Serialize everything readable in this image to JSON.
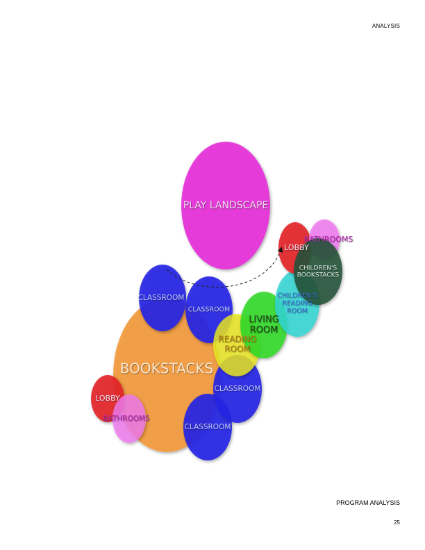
{
  "header": {
    "section_label": "ANALYSIS"
  },
  "footer": {
    "title": "PROGRAM ANALYSIS",
    "page_number": "25"
  },
  "colors": {
    "magenta": "#e632d9",
    "orange": "#f39a3a",
    "blue": "#2424e6",
    "green": "#33d92a",
    "yellow": "#e9e61f",
    "red": "#e3262a",
    "pink": "#f07bf0",
    "cyan": "#33d6d3",
    "dark_green": "#24523a"
  },
  "diagram": {
    "bubbles": [
      {
        "id": "play-landscape",
        "label": [
          "PLAY LANDSCAPE"
        ],
        "color": "magenta",
        "label_color": "#f6d6f2"
      },
      {
        "id": "bookstacks",
        "label": [
          "BOOKSTACKS"
        ],
        "color": "orange",
        "label_color": "#fbe3c6"
      },
      {
        "id": "classroom-1",
        "label": [
          "CLASSROOM"
        ],
        "color": "blue",
        "label_color": "#b9c2ff"
      },
      {
        "id": "classroom-2",
        "label": [
          "CLASSROOM"
        ],
        "color": "blue",
        "label_color": "#b9c2ff"
      },
      {
        "id": "classroom-3",
        "label": [
          "CLASSROOM"
        ],
        "color": "blue",
        "label_color": "#b9c2ff"
      },
      {
        "id": "classroom-4",
        "label": [
          "CLASSROOM"
        ],
        "color": "blue",
        "label_color": "#b9c2ff"
      },
      {
        "id": "living-room",
        "label": [
          "LIVING",
          "ROOM"
        ],
        "color": "green",
        "label_color": "#1e4a16"
      },
      {
        "id": "reading-room",
        "label": [
          "READING",
          "ROOM"
        ],
        "color": "yellow",
        "label_color": "#b07d12"
      },
      {
        "id": "lobby-top",
        "label": [
          "LOBBY"
        ],
        "color": "red",
        "label_color": "#f7d6e8"
      },
      {
        "id": "bathrooms-top",
        "label": [
          "BATHROOMS"
        ],
        "color": "pink",
        "label_color": "#b32bb0"
      },
      {
        "id": "childrens-bookstacks",
        "label": [
          "CHILDREN'S",
          "BOOKSTACKS"
        ],
        "color": "dark_green",
        "label_color": "#d7e6dc"
      },
      {
        "id": "childrens-reading-room",
        "label": [
          "CHILDREN'S",
          "READING",
          "ROOM"
        ],
        "color": "cyan",
        "label_color": "#3b6fd6"
      },
      {
        "id": "lobby-bottom",
        "label": [
          "LOBBY"
        ],
        "color": "red",
        "label_color": "#f7d6e8"
      },
      {
        "id": "bathrooms-bottom",
        "label": [
          "BATHROOMS"
        ],
        "color": "pink",
        "label_color": "#b32bb0"
      }
    ]
  }
}
